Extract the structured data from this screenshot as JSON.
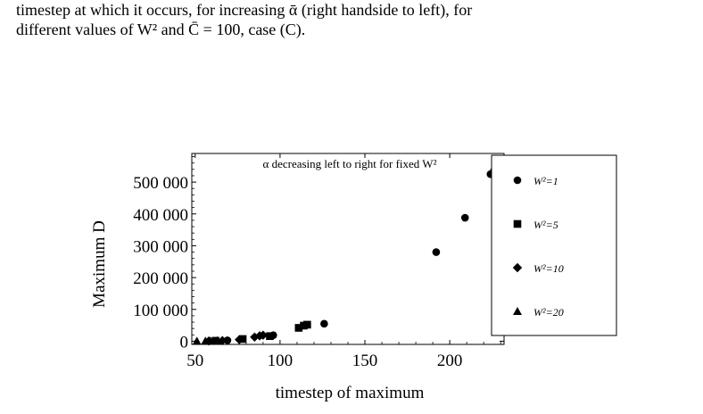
{
  "caption": {
    "line1": "timestep at which it occurs, for increasing ᾱ (right handside to left), for",
    "line2": "different values of W² and C̄ = 100, case (C)."
  },
  "chart_data": {
    "type": "scatter",
    "title": "α decreasing left to right for fixed W²",
    "xlabel": "timestep of maximum",
    "ylabel": "Maximum D",
    "xlim": [
      48,
      232
    ],
    "ylim": [
      -10000,
      590000
    ],
    "xticks": [
      50,
      100,
      150,
      200
    ],
    "xtick_labels": [
      "50",
      "100",
      "150",
      "200"
    ],
    "yticks": [
      0,
      100000,
      200000,
      300000,
      400000,
      500000
    ],
    "ytick_labels": [
      "0",
      "100 000",
      "200 000",
      "300 000",
      "400 000",
      "500 000"
    ],
    "legend_placement": "right",
    "series": [
      {
        "name": "W²=1",
        "marker": "circle",
        "points": [
          [
            69,
            3000
          ],
          [
            96,
            19000
          ],
          [
            126,
            55000
          ],
          [
            192,
            280000
          ],
          [
            209,
            388000
          ],
          [
            224,
            525000
          ],
          [
            226,
            535000
          ]
        ]
      },
      {
        "name": "W²=5",
        "marker": "square",
        "points": [
          [
            62,
            1500
          ],
          [
            78,
            7000
          ],
          [
            94,
            16000
          ],
          [
            111,
            42000
          ],
          [
            114,
            49000
          ],
          [
            116,
            52000
          ]
        ]
      },
      {
        "name": "W²=10",
        "marker": "diamond",
        "points": [
          [
            58,
            800
          ],
          [
            66,
            2000
          ],
          [
            76,
            5000
          ],
          [
            85,
            13000
          ],
          [
            88,
            17000
          ],
          [
            90,
            19000
          ]
        ]
      },
      {
        "name": "W²=20",
        "marker": "triangle",
        "points": [
          [
            51,
            300
          ],
          [
            56,
            600
          ],
          [
            59,
            1000
          ],
          [
            63,
            2000
          ]
        ]
      }
    ]
  }
}
